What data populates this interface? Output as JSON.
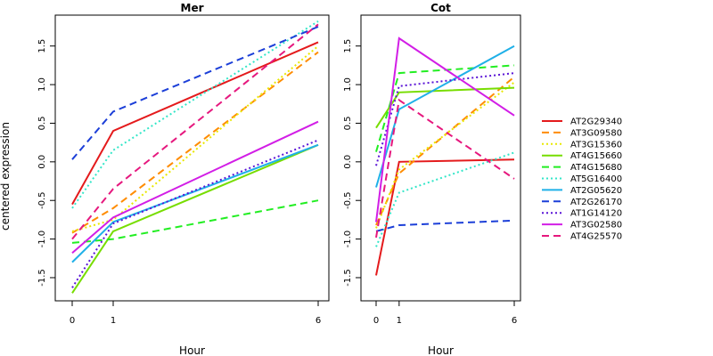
{
  "chart_data": {
    "type": "line",
    "ylabel": "centered expression",
    "xlabel": "Hour",
    "x": [
      "0",
      "1",
      "6"
    ],
    "ylim": [
      -1.8,
      1.9
    ],
    "yticks": [
      "-1.5",
      "-1.0",
      "-0.5",
      "0.0",
      "0.5",
      "1.0",
      "1.5"
    ],
    "grid": false,
    "legend_position": "right",
    "panels": [
      {
        "title": "Mer",
        "series": [
          {
            "name": "AT2G29340",
            "values": [
              -0.55,
              0.4,
              1.55
            ]
          },
          {
            "name": "AT3G09580",
            "values": [
              -0.92,
              -0.6,
              1.42
            ]
          },
          {
            "name": "AT3G15360",
            "values": [
              -0.9,
              -0.75,
              1.5
            ]
          },
          {
            "name": "AT4G15660",
            "values": [
              -1.7,
              -0.9,
              0.22
            ]
          },
          {
            "name": "AT4G15680",
            "values": [
              -1.05,
              -1.0,
              -0.5
            ]
          },
          {
            "name": "AT5G16400",
            "values": [
              -0.6,
              0.15,
              1.82
            ]
          },
          {
            "name": "AT2G05620",
            "values": [
              -1.3,
              -0.78,
              0.22
            ]
          },
          {
            "name": "AT2G26170",
            "values": [
              0.03,
              0.65,
              1.75
            ]
          },
          {
            "name": "AT1G14120",
            "values": [
              -1.63,
              -0.8,
              0.28
            ]
          },
          {
            "name": "AT3G02580",
            "values": [
              -1.18,
              -0.72,
              0.52
            ]
          },
          {
            "name": "AT4G25570",
            "values": [
              -1.0,
              -0.35,
              1.78
            ]
          }
        ]
      },
      {
        "title": "Cot",
        "series": [
          {
            "name": "AT2G29340",
            "values": [
              -1.47,
              0.0,
              0.03
            ]
          },
          {
            "name": "AT3G09580",
            "values": [
              -0.82,
              -0.15,
              1.1
            ]
          },
          {
            "name": "AT3G15360",
            "values": [
              -0.86,
              -0.1,
              1.03
            ]
          },
          {
            "name": "AT4G15660",
            "values": [
              0.44,
              0.9,
              0.96
            ]
          },
          {
            "name": "AT4G15680",
            "values": [
              0.13,
              1.15,
              1.25
            ]
          },
          {
            "name": "AT5G16400",
            "values": [
              -1.1,
              -0.4,
              0.12
            ]
          },
          {
            "name": "AT2G05620",
            "values": [
              -0.33,
              0.68,
              1.5
            ]
          },
          {
            "name": "AT2G26170",
            "values": [
              -0.9,
              -0.82,
              -0.76
            ]
          },
          {
            "name": "AT1G14120",
            "values": [
              -0.05,
              0.98,
              1.15
            ]
          },
          {
            "name": "AT3G02580",
            "values": [
              -0.78,
              1.6,
              0.6
            ]
          },
          {
            "name": "AT4G25570",
            "values": [
              -0.98,
              0.8,
              -0.22
            ]
          }
        ]
      }
    ],
    "series_styles": [
      {
        "name": "AT2G29340",
        "color": "#e41a1c",
        "dash": "solid"
      },
      {
        "name": "AT3G09580",
        "color": "#ff8c00",
        "dash": "dashed"
      },
      {
        "name": "AT3G15360",
        "color": "#e8e800",
        "dash": "dotted"
      },
      {
        "name": "AT4G15660",
        "color": "#77dd00",
        "dash": "solid"
      },
      {
        "name": "AT4G15680",
        "color": "#22ee22",
        "dash": "dashed"
      },
      {
        "name": "AT5G16400",
        "color": "#33e6c8",
        "dash": "dotted"
      },
      {
        "name": "AT2G05620",
        "color": "#1fb0e8",
        "dash": "solid"
      },
      {
        "name": "AT2G26170",
        "color": "#1c3fd8",
        "dash": "dashed"
      },
      {
        "name": "AT1G14120",
        "color": "#5a14d6",
        "dash": "dotted"
      },
      {
        "name": "AT3G02580",
        "color": "#d21ee6",
        "dash": "solid"
      },
      {
        "name": "AT4G25570",
        "color": "#e6187e",
        "dash": "dashed"
      }
    ]
  }
}
